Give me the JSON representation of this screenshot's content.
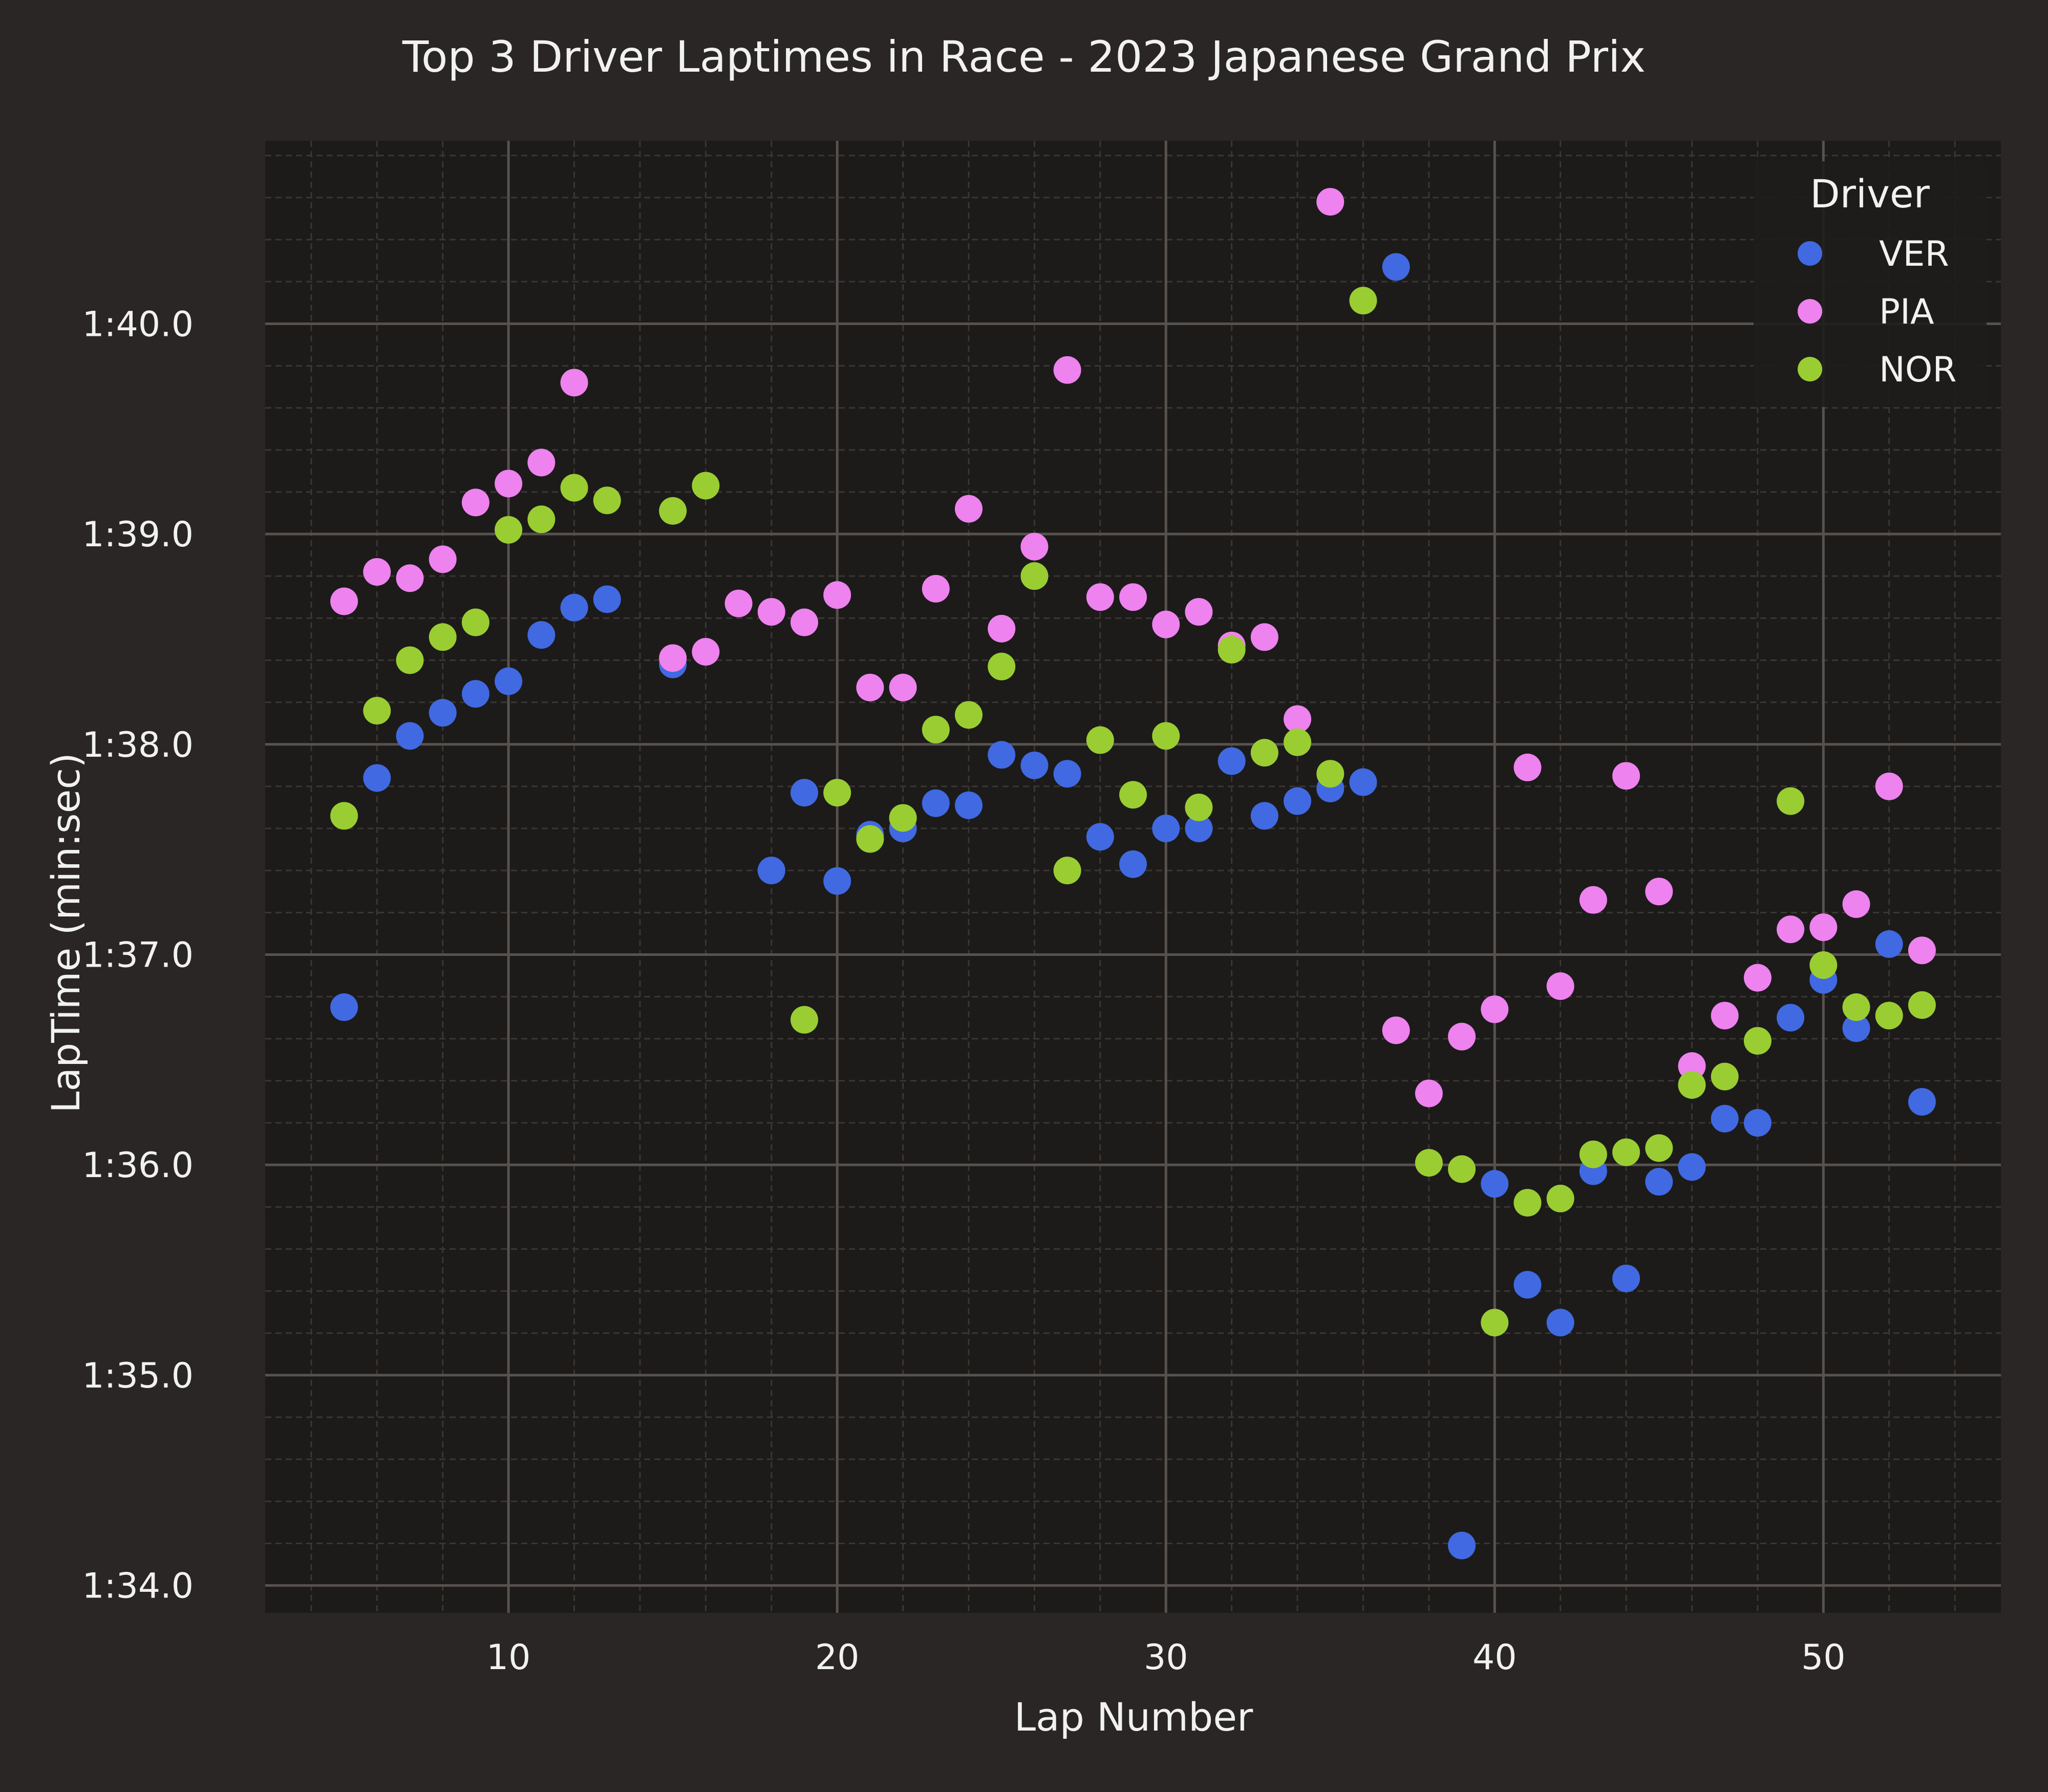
{
  "chart_data": {
    "type": "scatter",
    "title": "Top 3 Driver Laptimes in Race - 2023 Japanese Grand Prix",
    "xlabel": "Lap Number",
    "ylabel": "LapTime (min:sec)",
    "xlim": [
      2.6,
      55.4
    ],
    "ylim": [
      93.87,
      100.87
    ],
    "xticks": [
      10,
      20,
      30,
      40,
      50
    ],
    "xtick_labels": [
      "10",
      "20",
      "30",
      "40",
      "50"
    ],
    "yticks": [
      94,
      95,
      96,
      97,
      98,
      99,
      100
    ],
    "ytick_labels": [
      "1:34.0",
      "1:35.0",
      "1:36.0",
      "1:37.0",
      "1:38.0",
      "1:39.0",
      "1:40.0"
    ],
    "grid": true,
    "legend": {
      "title": "Driver",
      "position": "top-right"
    },
    "background_color": "#1c1b1a",
    "series": [
      {
        "name": "VER",
        "color": "#4169e1",
        "x": [
          5,
          6,
          7,
          8,
          9,
          10,
          11,
          12,
          13,
          15,
          18,
          19,
          20,
          21,
          22,
          23,
          24,
          25,
          26,
          27,
          28,
          29,
          30,
          31,
          32,
          33,
          34,
          35,
          36,
          37,
          39,
          40,
          41,
          42,
          43,
          44,
          45,
          46,
          47,
          48,
          49,
          50,
          51,
          52,
          53
        ],
        "y": [
          96.75,
          97.84,
          98.04,
          98.15,
          98.24,
          98.3,
          98.52,
          98.65,
          98.69,
          98.38,
          97.4,
          97.77,
          97.35,
          97.57,
          97.6,
          97.72,
          97.71,
          97.95,
          97.9,
          97.86,
          97.56,
          97.43,
          97.6,
          97.6,
          97.92,
          97.66,
          97.73,
          97.79,
          97.82,
          100.27,
          94.19,
          95.91,
          95.43,
          95.25,
          95.97,
          95.46,
          95.92,
          95.99,
          96.22,
          96.2,
          96.7,
          96.88,
          96.65,
          97.05,
          96.3
        ]
      },
      {
        "name": "PIA",
        "color": "#ee82ee",
        "x": [
          5,
          6,
          7,
          8,
          9,
          10,
          11,
          12,
          15,
          16,
          17,
          18,
          19,
          20,
          21,
          22,
          23,
          24,
          25,
          26,
          27,
          28,
          29,
          30,
          31,
          32,
          33,
          34,
          35,
          37,
          38,
          39,
          40,
          41,
          42,
          43,
          44,
          45,
          46,
          47,
          48,
          49,
          50,
          51,
          52,
          53
        ],
        "y": [
          98.68,
          98.82,
          98.79,
          98.88,
          99.15,
          99.24,
          99.34,
          99.72,
          98.41,
          98.44,
          98.67,
          98.63,
          98.58,
          98.71,
          98.27,
          98.27,
          98.74,
          99.12,
          98.55,
          98.94,
          99.78,
          98.7,
          98.7,
          98.57,
          98.63,
          98.47,
          98.51,
          98.12,
          100.58,
          96.64,
          96.34,
          96.61,
          96.74,
          97.89,
          96.85,
          97.26,
          97.85,
          97.3,
          96.47,
          96.71,
          96.89,
          97.12,
          97.13,
          97.24,
          97.8,
          97.02
        ]
      },
      {
        "name": "NOR",
        "color": "#9acd32",
        "x": [
          5,
          6,
          7,
          8,
          9,
          10,
          11,
          12,
          13,
          15,
          16,
          19,
          20,
          21,
          22,
          23,
          24,
          25,
          26,
          27,
          28,
          29,
          30,
          31,
          32,
          33,
          34,
          35,
          36,
          38,
          39,
          40,
          41,
          42,
          43,
          44,
          45,
          46,
          47,
          48,
          49,
          50,
          51,
          52,
          53
        ],
        "y": [
          97.66,
          98.16,
          98.4,
          98.51,
          98.58,
          99.02,
          99.07,
          99.22,
          99.16,
          99.11,
          99.23,
          96.69,
          97.77,
          97.55,
          97.65,
          98.07,
          98.14,
          98.37,
          98.8,
          97.4,
          98.02,
          97.76,
          98.04,
          97.7,
          98.45,
          97.96,
          98.01,
          97.86,
          100.11,
          96.01,
          95.98,
          95.25,
          95.82,
          95.84,
          96.05,
          96.06,
          96.08,
          96.38,
          96.42,
          96.59,
          97.73,
          96.95,
          96.75,
          96.71,
          96.76
        ]
      }
    ]
  }
}
